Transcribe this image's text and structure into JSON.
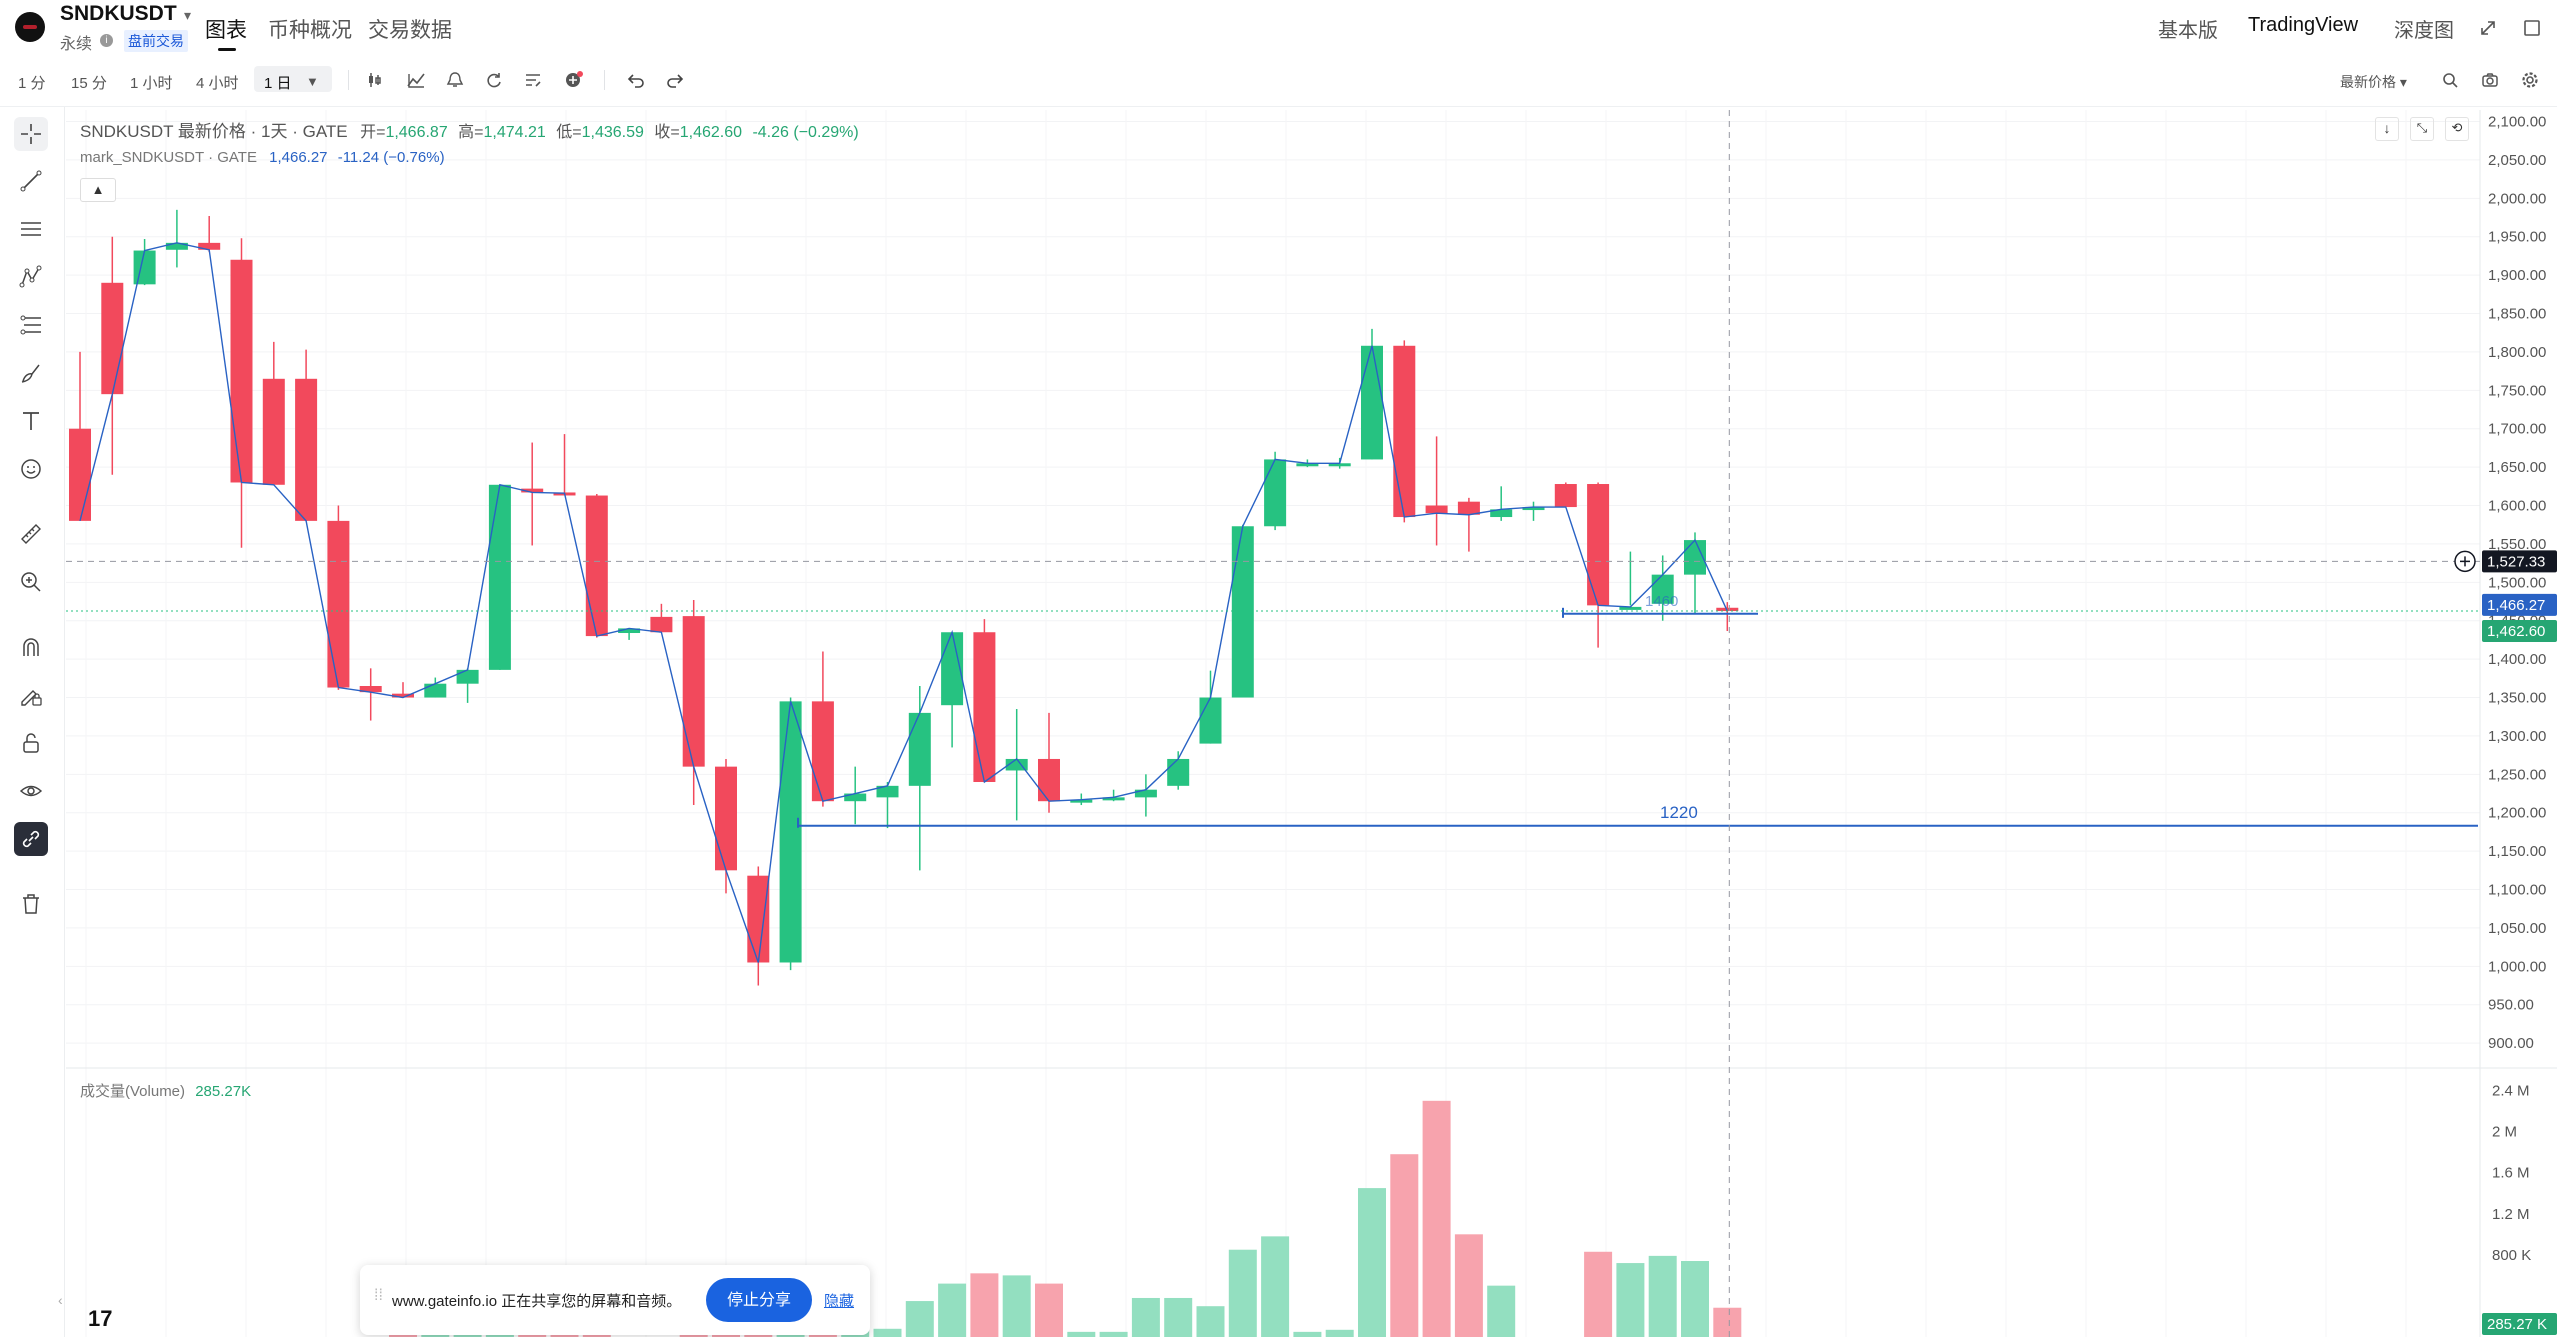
{
  "header": {
    "symbol": "SNDKUSDT",
    "contract_type": "永续",
    "premarket_badge": "盘前交易",
    "tabs": [
      {
        "label": "图表",
        "active": true
      },
      {
        "label": "币种概况",
        "active": false
      },
      {
        "label": "交易数据",
        "active": false
      }
    ],
    "views": [
      {
        "label": "基本版",
        "active": false
      },
      {
        "label": "TradingView",
        "active": true
      },
      {
        "label": "深度图",
        "active": false
      }
    ]
  },
  "toolbar": {
    "intervals": [
      {
        "label": "1 分",
        "active": false
      },
      {
        "label": "15 分",
        "active": false
      },
      {
        "label": "1 小时",
        "active": false
      },
      {
        "label": "4 小时",
        "active": false
      },
      {
        "label": "1 日",
        "active": true
      }
    ],
    "price_type": "最新价格",
    "icons": [
      "candle-type-icon",
      "indicators-icon",
      "alert-icon",
      "replay-icon",
      "templates-icon",
      "add-compare-icon",
      "undo-icon",
      "redo-icon"
    ],
    "right_icons": [
      "search-icon",
      "camera-icon",
      "settings-icon"
    ]
  },
  "left_tools": [
    "crosshair-icon",
    "trend-line-icon",
    "horizontal-lines-icon",
    "pattern-icon",
    "fib-icon",
    "brush-icon",
    "text-icon",
    "emoji-icon",
    "ruler-icon",
    "zoom-in-icon",
    "magnet-icon",
    "lock-drawing-icon",
    "lock-icon",
    "eye-icon",
    "link-icon",
    "trash-icon"
  ],
  "legend": {
    "title": "SNDKUSDT 最新价格 · 1天 · GATE",
    "open_label": "开=",
    "open": "1,466.87",
    "high_label": "高=",
    "high": "1,474.21",
    "low_label": "低=",
    "low": "1,436.59",
    "close_label": "收=",
    "close": "1,462.60",
    "change": "-4.26 (−0.29%)",
    "mark_label": "mark_SNDKUSDT · GATE",
    "mark_value": "1,466.27",
    "mark_change": "-11.24 (−0.76%)"
  },
  "volume_legend": {
    "label": "成交量(Volume)",
    "value": "285.27K"
  },
  "price_axis": {
    "ticks": [
      "2,100.00",
      "2,050.00",
      "2,000.00",
      "1,950.00",
      "1,900.00",
      "1,850.00",
      "1,800.00",
      "1,750.00",
      "1,700.00",
      "1,650.00",
      "1,600.00",
      "1,550.00",
      "1,500.00",
      "1,450.00",
      "1,400.00",
      "1,350.00",
      "1,300.00",
      "1,250.00",
      "1,200.00",
      "1,150.00",
      "1,100.00",
      "1,050.00",
      "1,000.00",
      "950.00",
      "900.00"
    ],
    "crosshair_price": "1,527.33",
    "mark_price_tag": "1,466.27",
    "last_price_tag": "1,462.60"
  },
  "volume_axis": {
    "ticks": [
      "2.4 M",
      "2 M",
      "1.6 M",
      "1.2 M",
      "800 K"
    ],
    "current_tag": "285.27 K"
  },
  "annotations": {
    "level_1220": "1220",
    "level_upper": "1460"
  },
  "colors": {
    "up": "#26c281",
    "down": "#f2495c",
    "up_vol": "#93dfc0",
    "down_vol": "#f7a3ad",
    "line": "#2962c4"
  },
  "chart_data": {
    "type": "candlestick",
    "timeframe": "1天",
    "y_range": [
      865,
      2115
    ],
    "volume_range": [
      0,
      2.6
    ],
    "volume_unit": "M",
    "candles": [
      {
        "o": 1700,
        "h": 1800,
        "l": 1580,
        "c": 1580,
        "v": 0
      },
      {
        "o": 1890,
        "h": 1950,
        "l": 1640,
        "c": 1745,
        "v": 0
      },
      {
        "o": 1888,
        "h": 1947,
        "l": 1887,
        "c": 1932,
        "v": 0
      },
      {
        "o": 1933,
        "h": 1985,
        "l": 1910,
        "c": 1942,
        "v": 0
      },
      {
        "o": 1942,
        "h": 1977,
        "l": 1930,
        "c": 1933,
        "v": 0
      },
      {
        "o": 1920,
        "h": 1948,
        "l": 1545,
        "c": 1630,
        "v": 0
      },
      {
        "o": 1765,
        "h": 1813,
        "l": 1627,
        "c": 1627,
        "v": 0
      },
      {
        "o": 1765,
        "h": 1803,
        "l": 1580,
        "c": 1580,
        "v": 0
      },
      {
        "o": 1580,
        "h": 1600,
        "l": 1360,
        "c": 1363,
        "v": 0
      },
      {
        "o": 1365,
        "h": 1388,
        "l": 1320,
        "c": 1357,
        "v": 0
      },
      {
        "o": 1355,
        "h": 1370,
        "l": 1350,
        "c": 1350,
        "v": 0.02
      },
      {
        "o": 1350,
        "h": 1376,
        "l": 1350,
        "c": 1368,
        "v": 0.05
      },
      {
        "o": 1368,
        "h": 1388,
        "l": 1343,
        "c": 1386,
        "v": 0.05
      },
      {
        "o": 1386,
        "h": 1627,
        "l": 1386,
        "c": 1627,
        "v": 0.05
      },
      {
        "o": 1622,
        "h": 1682,
        "l": 1548,
        "c": 1617,
        "v": 0.05
      },
      {
        "o": 1617,
        "h": 1693,
        "l": 1615,
        "c": 1616,
        "v": 0.05
      },
      {
        "o": 1613,
        "h": 1615,
        "l": 1428,
        "c": 1430,
        "v": 0.05
      },
      {
        "o": 1434,
        "h": 1440,
        "l": 1425,
        "c": 1440,
        "v": 0
      },
      {
        "o": 1455,
        "h": 1472,
        "l": 1437,
        "c": 1435,
        "v": 0
      },
      {
        "o": 1456,
        "h": 1477,
        "l": 1210,
        "c": 1260,
        "v": 0.05
      },
      {
        "o": 1260,
        "h": 1270,
        "l": 1095,
        "c": 1125,
        "v": 0.05
      },
      {
        "o": 1118,
        "h": 1130,
        "l": 975,
        "c": 1005,
        "v": 0.05
      },
      {
        "o": 1005,
        "h": 1350,
        "l": 995,
        "c": 1345,
        "v": 0.05
      },
      {
        "o": 1345,
        "h": 1410,
        "l": 1208,
        "c": 1215,
        "v": 0.05
      },
      {
        "o": 1215,
        "h": 1260,
        "l": 1185,
        "c": 1225,
        "v": 0.08
      },
      {
        "o": 1220,
        "h": 1240,
        "l": 1180,
        "c": 1235,
        "v": 0.08
      },
      {
        "o": 1235,
        "h": 1365,
        "l": 1125,
        "c": 1330,
        "v": 0.35
      },
      {
        "o": 1340,
        "h": 1433,
        "l": 1285,
        "c": 1435,
        "v": 0.52
      },
      {
        "o": 1435,
        "h": 1452,
        "l": 1240,
        "c": 1240,
        "v": 0.62
      },
      {
        "o": 1255,
        "h": 1335,
        "l": 1190,
        "c": 1270,
        "v": 0.6
      },
      {
        "o": 1270,
        "h": 1330,
        "l": 1200,
        "c": 1215,
        "v": 0.52
      },
      {
        "o": 1215,
        "h": 1225,
        "l": 1210,
        "c": 1217,
        "v": 0.05
      },
      {
        "o": 1217,
        "h": 1230,
        "l": 1215,
        "c": 1220,
        "v": 0.05
      },
      {
        "o": 1220,
        "h": 1250,
        "l": 1195,
        "c": 1230,
        "v": 0.38
      },
      {
        "o": 1235,
        "h": 1280,
        "l": 1230,
        "c": 1270,
        "v": 0.38
      },
      {
        "o": 1290,
        "h": 1385,
        "l": 1290,
        "c": 1350,
        "v": 0.3
      },
      {
        "o": 1350,
        "h": 1575,
        "l": 1350,
        "c": 1573,
        "v": 0.85
      },
      {
        "o": 1573,
        "h": 1670,
        "l": 1568,
        "c": 1660,
        "v": 0.98
      },
      {
        "o": 1655,
        "h": 1660,
        "l": 1650,
        "c": 1655,
        "v": 0.05
      },
      {
        "o": 1652,
        "h": 1662,
        "l": 1648,
        "c": 1655,
        "v": 0.07
      },
      {
        "o": 1660,
        "h": 1830,
        "l": 1660,
        "c": 1808,
        "v": 1.45
      },
      {
        "o": 1808,
        "h": 1815,
        "l": 1578,
        "c": 1585,
        "v": 1.78
      },
      {
        "o": 1600,
        "h": 1690,
        "l": 1548,
        "c": 1590,
        "v": 2.3
      },
      {
        "o": 1605,
        "h": 1610,
        "l": 1540,
        "c": 1588,
        "v": 1.0
      },
      {
        "o": 1585,
        "h": 1625,
        "l": 1580,
        "c": 1595,
        "v": 0.5
      },
      {
        "o": 1595,
        "h": 1605,
        "l": 1580,
        "c": 1598,
        "v": 0
      },
      {
        "o": 1628,
        "h": 1630,
        "l": 1602,
        "c": 1598,
        "v": 0
      },
      {
        "o": 1628,
        "h": 1630,
        "l": 1415,
        "c": 1470,
        "v": 0.83
      },
      {
        "o": 1468,
        "h": 1540,
        "l": 1470,
        "c": 1468,
        "v": 0.72
      },
      {
        "o": 1472,
        "h": 1535,
        "l": 1450,
        "c": 1510,
        "v": 0.79
      },
      {
        "o": 1510,
        "h": 1565,
        "l": 1460,
        "c": 1555,
        "v": 0.74
      },
      {
        "o": 1466.87,
        "h": 1474.21,
        "l": 1436.59,
        "c": 1462.6,
        "v": 0.285
      }
    ]
  }
}
